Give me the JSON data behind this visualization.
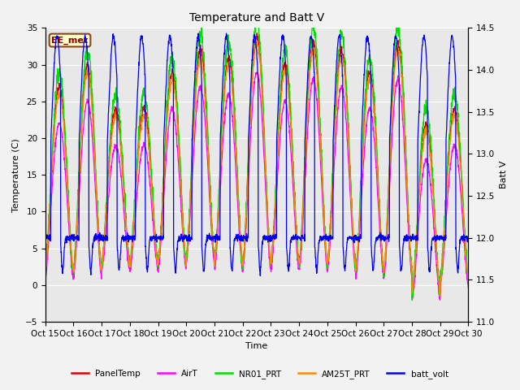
{
  "title": "Temperature and Batt V",
  "xlabel": "Time",
  "ylabel_left": "Temperature (C)",
  "ylabel_right": "Batt V",
  "ylim_left": [
    -5,
    35
  ],
  "ylim_right": [
    11.0,
    14.5
  ],
  "annotation": "EE_met",
  "plot_bg_color": "#e8e8e8",
  "fig_bg_color": "#f2f2f2",
  "x_tick_labels": [
    "Oct 15",
    "Oct 16",
    "Oct 17",
    "Oct 18",
    "Oct 19",
    "Oct 20",
    "Oct 21",
    "Oct 22",
    "Oct 23",
    "Oct 24",
    "Oct 25",
    "Oct 26",
    "Oct 27",
    "Oct 28",
    "Oct 29",
    "Oct 30"
  ],
  "legend_labels": [
    "PanelTemp",
    "AirT",
    "NR01_PRT",
    "AM25T_PRT",
    "batt_volt"
  ],
  "legend_colors": [
    "#dd0000",
    "#ff00ff",
    "#00dd00",
    "#ff8800",
    "#0000ee"
  ],
  "n_days": 15,
  "points_per_day": 144,
  "day_peaks": [
    25,
    28,
    22,
    22,
    27,
    30,
    29,
    32,
    28,
    31,
    30,
    27,
    31,
    20,
    22
  ],
  "night_bases": [
    2,
    2,
    3,
    3,
    3,
    4,
    3,
    3,
    3,
    3,
    3,
    2,
    2,
    -1,
    1
  ]
}
